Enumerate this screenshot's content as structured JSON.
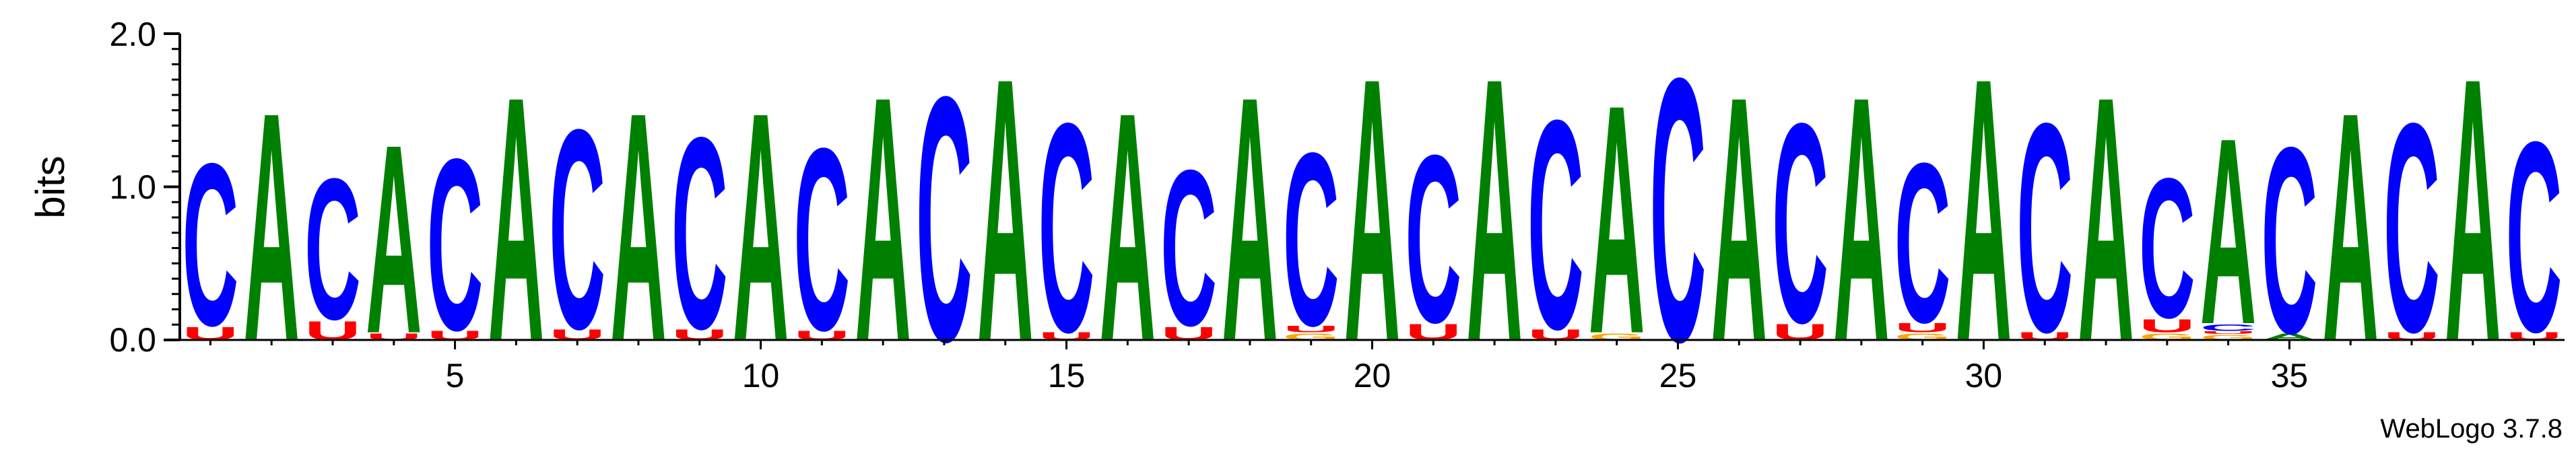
{
  "chart_data": {
    "type": "sequence-logo",
    "ylabel": "bits",
    "ylim": [
      0,
      2
    ],
    "yticks": [
      "0.0",
      "1.0",
      "2.0"
    ],
    "xticks": [
      5,
      10,
      15,
      20,
      25,
      30,
      35
    ],
    "footer": "WebLogo 3.7.8",
    "colors": {
      "A": "#008000",
      "C": "#0000ff",
      "G": "#ffa500",
      "U": "#ff0000"
    },
    "positions": [
      {
        "pos": 1,
        "stack": [
          [
            "U",
            0.1
          ],
          [
            "C",
            1.22
          ]
        ]
      },
      {
        "pos": 2,
        "stack": [
          [
            "A",
            1.72
          ]
        ]
      },
      {
        "pos": 3,
        "stack": [
          [
            "U",
            0.14
          ],
          [
            "C",
            1.06
          ]
        ]
      },
      {
        "pos": 4,
        "stack": [
          [
            "U",
            0.05
          ],
          [
            "A",
            1.42
          ]
        ]
      },
      {
        "pos": 5,
        "stack": [
          [
            "U",
            0.07
          ],
          [
            "C",
            1.29
          ]
        ]
      },
      {
        "pos": 6,
        "stack": [
          [
            "A",
            1.84
          ]
        ]
      },
      {
        "pos": 7,
        "stack": [
          [
            "U",
            0.08
          ],
          [
            "C",
            1.5
          ]
        ]
      },
      {
        "pos": 8,
        "stack": [
          [
            "A",
            1.72
          ]
        ]
      },
      {
        "pos": 9,
        "stack": [
          [
            "U",
            0.08
          ],
          [
            "C",
            1.44
          ]
        ]
      },
      {
        "pos": 10,
        "stack": [
          [
            "A",
            1.72
          ]
        ]
      },
      {
        "pos": 11,
        "stack": [
          [
            "U",
            0.07
          ],
          [
            "C",
            1.37
          ]
        ]
      },
      {
        "pos": 12,
        "stack": [
          [
            "A",
            1.84
          ]
        ]
      },
      {
        "pos": 13,
        "stack": [
          [
            "C",
            1.84
          ]
        ]
      },
      {
        "pos": 14,
        "stack": [
          [
            "A",
            1.98
          ]
        ]
      },
      {
        "pos": 15,
        "stack": [
          [
            "U",
            0.06
          ],
          [
            "C",
            1.57
          ]
        ]
      },
      {
        "pos": 16,
        "stack": [
          [
            "A",
            1.72
          ]
        ]
      },
      {
        "pos": 17,
        "stack": [
          [
            "U",
            0.1
          ],
          [
            "C",
            1.17
          ]
        ]
      },
      {
        "pos": 18,
        "stack": [
          [
            "A",
            1.84
          ]
        ]
      },
      {
        "pos": 19,
        "stack": [
          [
            "G",
            0.05
          ],
          [
            "U",
            0.05
          ],
          [
            "C",
            1.3
          ]
        ]
      },
      {
        "pos": 20,
        "stack": [
          [
            "A",
            1.98
          ]
        ]
      },
      {
        "pos": 21,
        "stack": [
          [
            "U",
            0.12
          ],
          [
            "C",
            1.26
          ]
        ]
      },
      {
        "pos": 22,
        "stack": [
          [
            "A",
            1.98
          ]
        ]
      },
      {
        "pos": 23,
        "stack": [
          [
            "U",
            0.08
          ],
          [
            "C",
            1.57
          ]
        ]
      },
      {
        "pos": 24,
        "stack": [
          [
            "G",
            0.05
          ],
          [
            "A",
            1.72
          ]
        ]
      },
      {
        "pos": 25,
        "stack": [
          [
            "C",
            1.98
          ]
        ]
      },
      {
        "pos": 26,
        "stack": [
          [
            "A",
            1.84
          ]
        ]
      },
      {
        "pos": 27,
        "stack": [
          [
            "U",
            0.12
          ],
          [
            "C",
            1.5
          ]
        ]
      },
      {
        "pos": 28,
        "stack": [
          [
            "A",
            1.84
          ]
        ]
      },
      {
        "pos": 29,
        "stack": [
          [
            "G",
            0.05
          ],
          [
            "U",
            0.07
          ],
          [
            "C",
            1.2
          ]
        ]
      },
      {
        "pos": 30,
        "stack": [
          [
            "A",
            1.98
          ]
        ]
      },
      {
        "pos": 31,
        "stack": [
          [
            "U",
            0.06
          ],
          [
            "C",
            1.57
          ]
        ]
      },
      {
        "pos": 32,
        "stack": [
          [
            "A",
            1.84
          ]
        ]
      },
      {
        "pos": 33,
        "stack": [
          [
            "G",
            0.05
          ],
          [
            "U",
            0.1
          ],
          [
            "C",
            1.05
          ]
        ]
      },
      {
        "pos": 34,
        "stack": [
          [
            "G",
            0.04
          ],
          [
            "U",
            0.02
          ],
          [
            "C",
            0.05
          ],
          [
            "A",
            1.4
          ]
        ]
      },
      {
        "pos": 35,
        "stack": [
          [
            "A",
            0.05
          ],
          [
            "C",
            1.4
          ]
        ]
      },
      {
        "pos": 36,
        "stack": [
          [
            "A",
            1.72
          ]
        ]
      },
      {
        "pos": 37,
        "stack": [
          [
            "U",
            0.06
          ],
          [
            "C",
            1.57
          ]
        ]
      },
      {
        "pos": 38,
        "stack": [
          [
            "A",
            1.98
          ]
        ]
      },
      {
        "pos": 39,
        "stack": [
          [
            "U",
            0.06
          ],
          [
            "C",
            1.43
          ]
        ]
      }
    ]
  }
}
